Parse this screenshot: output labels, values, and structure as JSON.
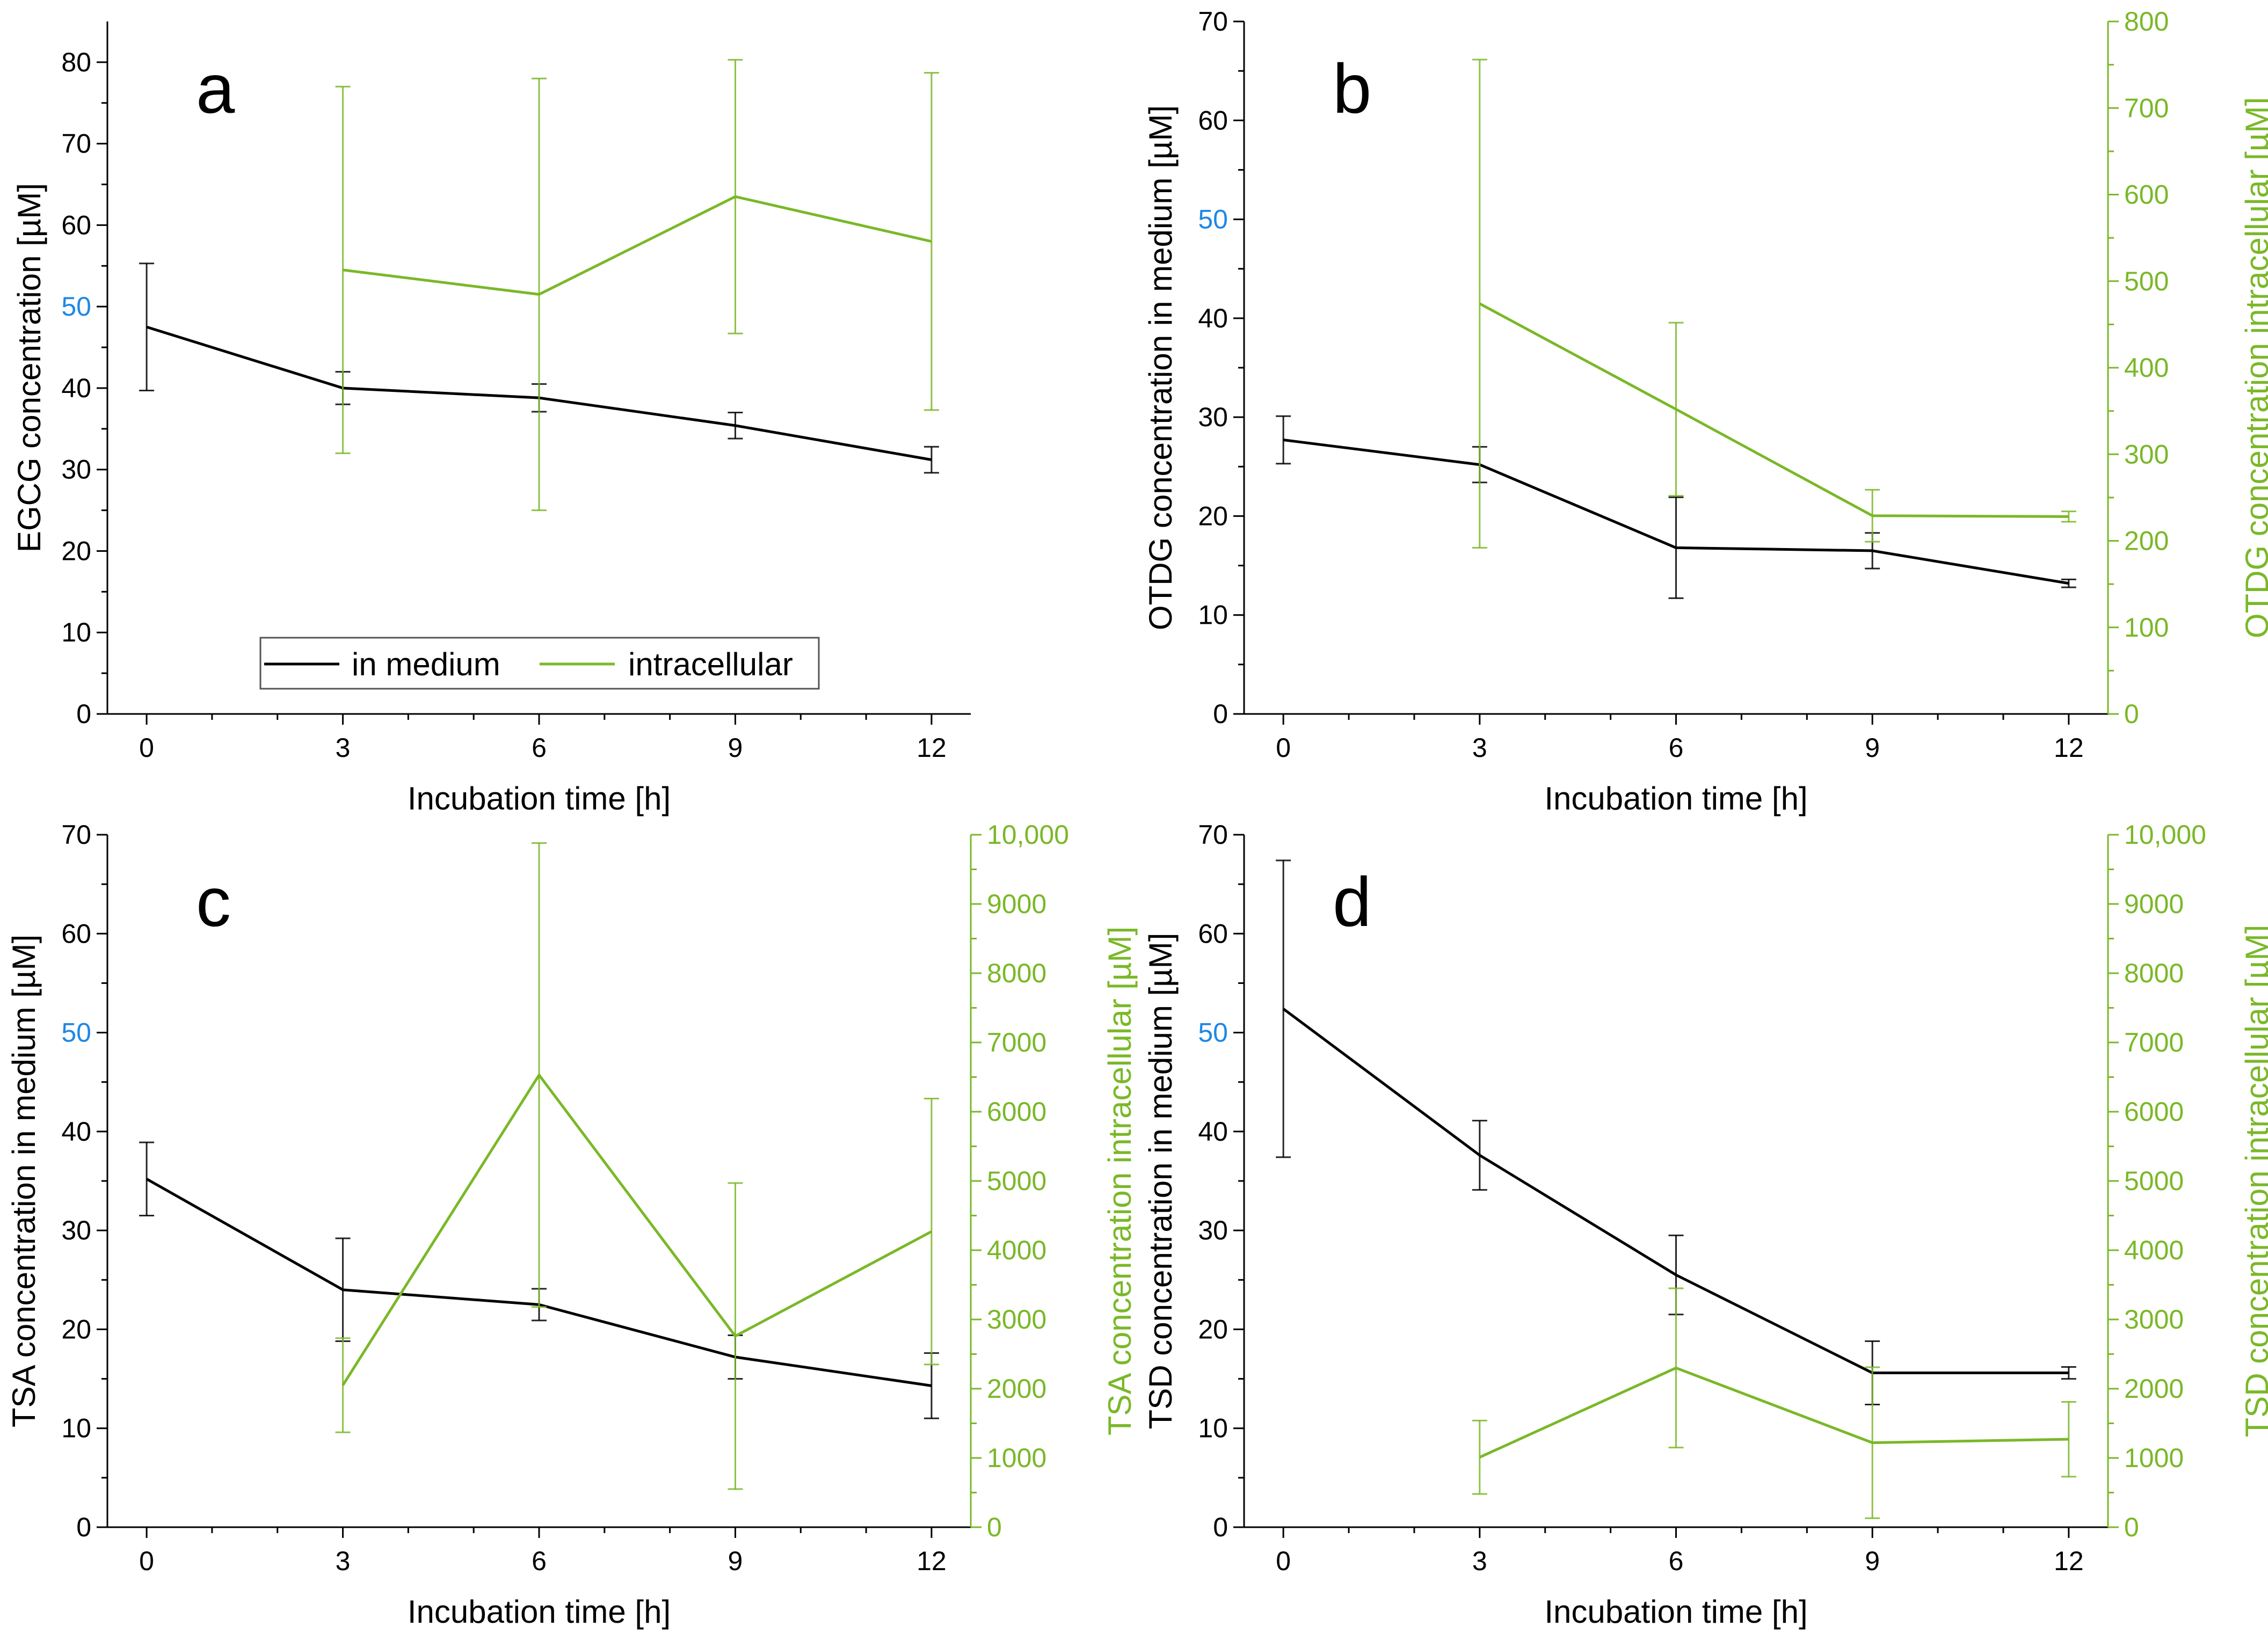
{
  "colors": {
    "medium": "#000000",
    "intracellular": "#7ab828",
    "highlight_tick": "#1e88e5"
  },
  "legend": {
    "medium_label": "in medium",
    "intracellular_label": "intracellular"
  },
  "chart_data": [
    {
      "panel": "a",
      "type": "line",
      "xlabel": "Incubation time [h]",
      "ylabel": "EGCG concentration [µM]",
      "x": [
        0,
        3,
        6,
        9,
        12
      ],
      "xlim": [
        -0.6,
        12.6
      ],
      "xticks": [
        "0",
        "3",
        "6",
        "9",
        "12"
      ],
      "ylim": [
        0,
        85
      ],
      "yticks": [
        "0",
        "10",
        "20",
        "30",
        "40",
        "50",
        "60",
        "70",
        "80"
      ],
      "highlight_ytick": "50",
      "series": [
        {
          "name": "in medium",
          "axis": "left",
          "values": [
            47.5,
            40,
            38.8,
            35.4,
            31.2
          ],
          "errors": [
            7.8,
            2.0,
            1.7,
            1.6,
            1.6
          ]
        },
        {
          "name": "intracellular",
          "axis": "left",
          "values": [
            null,
            54.5,
            51.5,
            63.5,
            58
          ],
          "errors": [
            null,
            22.5,
            26.5,
            16.8,
            20.7
          ]
        }
      ]
    },
    {
      "panel": "b",
      "type": "line",
      "xlabel": "Incubation time [h]",
      "ylabel": "OTDG concentration in medium [µM]",
      "ylabel2": "OTDG concentration intracellular [µM]",
      "x": [
        0,
        3,
        6,
        9,
        12
      ],
      "xlim": [
        -0.6,
        12.6
      ],
      "xticks": [
        "0",
        "3",
        "6",
        "9",
        "12"
      ],
      "ylim": [
        0,
        70
      ],
      "yticks": [
        "0",
        "10",
        "20",
        "30",
        "40",
        "50",
        "60",
        "70"
      ],
      "ylim2": [
        0,
        800
      ],
      "yticks2": [
        "0",
        "100",
        "200",
        "300",
        "400",
        "500",
        "600",
        "700",
        "800"
      ],
      "highlight_ytick": "50",
      "series": [
        {
          "name": "in medium",
          "axis": "left",
          "values": [
            27.7,
            25.2,
            16.8,
            16.5,
            13.2
          ],
          "errors": [
            2.4,
            1.8,
            5.1,
            1.8,
            0.4
          ]
        },
        {
          "name": "intracellular",
          "axis": "right",
          "values": [
            null,
            474,
            352,
            229,
            228
          ],
          "errors": [
            null,
            282,
            100,
            30,
            6
          ]
        }
      ]
    },
    {
      "panel": "c",
      "type": "line",
      "xlabel": "Incubation time [h]",
      "ylabel": "TSA concentration in medium [µM]",
      "ylabel2": "TSA concentration intracellular [µM]",
      "x": [
        0,
        3,
        6,
        9,
        12
      ],
      "xlim": [
        -0.6,
        12.6
      ],
      "xticks": [
        "0",
        "3",
        "6",
        "9",
        "12"
      ],
      "ylim": [
        0,
        70
      ],
      "yticks": [
        "0",
        "10",
        "20",
        "30",
        "40",
        "50",
        "60",
        "70"
      ],
      "ylim2": [
        0,
        10000
      ],
      "yticks2": [
        "0",
        "1000",
        "2000",
        "3000",
        "4000",
        "5000",
        "6000",
        "7000",
        "8000",
        "9000",
        "10,000"
      ],
      "highlight_ytick": "50",
      "series": [
        {
          "name": "in medium",
          "axis": "left",
          "values": [
            35.2,
            24,
            22.5,
            17.2,
            14.3
          ],
          "errors": [
            3.7,
            5.2,
            1.6,
            2.2,
            3.3
          ]
        },
        {
          "name": "intracellular",
          "axis": "right",
          "values": [
            null,
            2050,
            6530,
            2760,
            4270
          ],
          "errors": [
            null,
            680,
            3350,
            2210,
            1920
          ]
        }
      ]
    },
    {
      "panel": "d",
      "type": "line",
      "xlabel": "Incubation time [h]",
      "ylabel": "TSD concentration in medium [µM]",
      "ylabel2": "TSD concentration intracellular [µM]",
      "x": [
        0,
        3,
        6,
        9,
        12
      ],
      "xlim": [
        -0.6,
        12.6
      ],
      "xticks": [
        "0",
        "3",
        "6",
        "9",
        "12"
      ],
      "ylim": [
        0,
        70
      ],
      "yticks": [
        "0",
        "10",
        "20",
        "30",
        "40",
        "50",
        "60",
        "70"
      ],
      "ylim2": [
        0,
        10000
      ],
      "yticks2": [
        "0",
        "1000",
        "2000",
        "3000",
        "4000",
        "5000",
        "6000",
        "7000",
        "8000",
        "9000",
        "10,000"
      ],
      "highlight_ytick": "50",
      "series": [
        {
          "name": "in medium",
          "axis": "left",
          "values": [
            52.4,
            37.6,
            25.5,
            15.6,
            15.6
          ],
          "errors": [
            15,
            3.5,
            4.0,
            3.2,
            0.6
          ]
        },
        {
          "name": "intracellular",
          "axis": "right",
          "values": [
            null,
            1010,
            2300,
            1220,
            1270
          ],
          "errors": [
            null,
            530,
            1150,
            1090,
            540
          ]
        }
      ]
    }
  ]
}
